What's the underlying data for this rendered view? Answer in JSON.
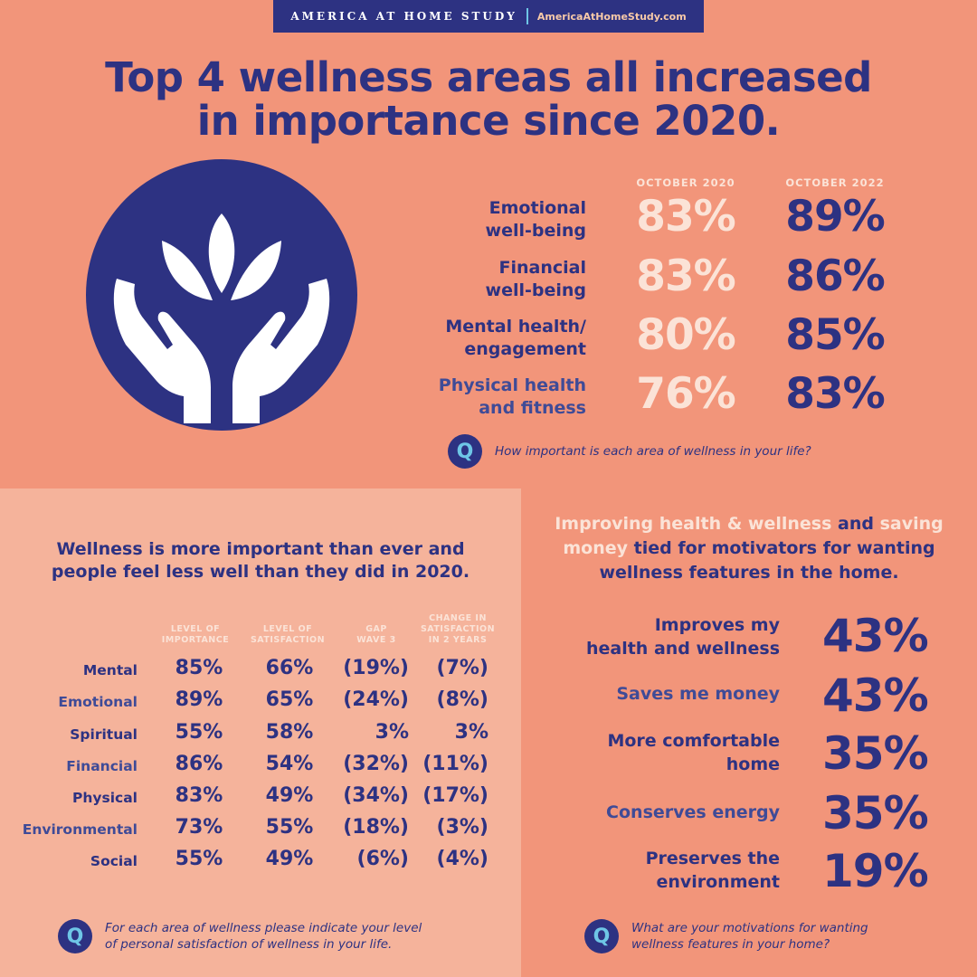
{
  "header": {
    "brand": "AMERICA AT HOME STUDY",
    "url": "AmericaAtHomeStudy.com"
  },
  "headline": {
    "line1": "Top 4 wellness areas all increased",
    "line2": "in importance since 2020."
  },
  "icon": "hands-holding-lotus-icon",
  "importance": {
    "columns": [
      "OCTOBER 2020",
      "OCTOBER 2022"
    ],
    "rows": [
      {
        "label1": "Emotional",
        "label2": "well-being",
        "v2020": "83%",
        "v2022": "89%"
      },
      {
        "label1": "Financial",
        "label2": "well-being",
        "v2020": "83%",
        "v2022": "86%"
      },
      {
        "label1": "Mental health/",
        "label2": "engagement",
        "v2020": "80%",
        "v2022": "85%"
      },
      {
        "label1": "Physical health",
        "label2": "and fitness",
        "v2020": "76%",
        "v2022": "83%"
      }
    ],
    "question_icon": "Q",
    "question": "How important is each area of wellness in your life?"
  },
  "satisfaction": {
    "title1": "Wellness is more important than ever and",
    "title2": "people feel less well than they did in 2020.",
    "headers": [
      [
        "LEVEL OF",
        "IMPORTANCE"
      ],
      [
        "LEVEL OF",
        "SATISFACTION"
      ],
      [
        "GAP",
        "WAVE 3"
      ],
      [
        "CHANGE IN",
        "SATISFACTION",
        "IN 2 YEARS"
      ]
    ],
    "rows": [
      {
        "label": "Mental",
        "importance": "85%",
        "satisfaction": "66%",
        "gap": "(19%)",
        "change": "(7%)"
      },
      {
        "label": "Emotional",
        "importance": "89%",
        "satisfaction": "65%",
        "gap": "(24%)",
        "change": "(8%)"
      },
      {
        "label": "Spiritual",
        "importance": "55%",
        "satisfaction": "58%",
        "gap": "3%",
        "change": "3%"
      },
      {
        "label": "Financial",
        "importance": "86%",
        "satisfaction": "54%",
        "gap": "(32%)",
        "change": "(11%)"
      },
      {
        "label": "Physical",
        "importance": "83%",
        "satisfaction": "49%",
        "gap": "(34%)",
        "change": "(17%)"
      },
      {
        "label": "Environmental",
        "importance": "73%",
        "satisfaction": "55%",
        "gap": "(18%)",
        "change": "(3%)"
      },
      {
        "label": "Social",
        "importance": "55%",
        "satisfaction": "49%",
        "gap": "(6%)",
        "change": "(4%)"
      }
    ],
    "question1": "For each area of wellness please indicate your level",
    "question2": "of personal satisfaction of wellness in your life."
  },
  "motivators": {
    "title_a": "Improving health & wellness",
    "title_b": " and ",
    "title_c": "saving",
    "title_d": "money",
    "title_e": " tied for motivators for wanting",
    "title_f": "wellness features in the home.",
    "rows": [
      {
        "label1": "Improves my",
        "label2": "health and wellness",
        "value": "43%"
      },
      {
        "label1": "Saves me money",
        "label2": "",
        "value": "43%"
      },
      {
        "label1": "More comfortable",
        "label2": "home",
        "value": "35%"
      },
      {
        "label1": "Conserves energy",
        "label2": "",
        "value": "35%"
      },
      {
        "label1": "Preserves the",
        "label2": "environment",
        "value": "19%"
      }
    ],
    "question1": "What are your motivations for wanting",
    "question2": "wellness features in your home?"
  },
  "colors": {
    "navy": "#2d3282",
    "salmon": "#f2957a",
    "light_salmon": "#f5b39b",
    "cream": "#fbe3d7",
    "accent": "#6ec6e6"
  }
}
